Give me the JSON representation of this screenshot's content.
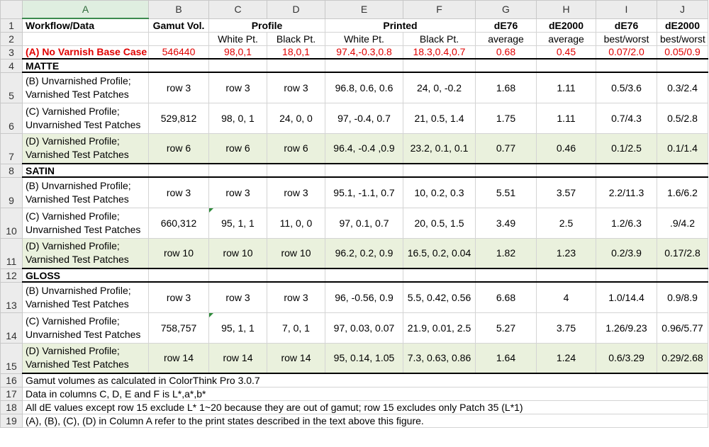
{
  "columns": [
    "A",
    "B",
    "C",
    "D",
    "E",
    "F",
    "G",
    "H",
    "I",
    "J"
  ],
  "row_numbers": [
    "1",
    "2",
    "3",
    "4",
    "5",
    "6",
    "7",
    "8",
    "9",
    "10",
    "11",
    "12",
    "13",
    "14",
    "15",
    "16",
    "17",
    "18",
    "19"
  ],
  "header1": {
    "a": "Workflow/Data",
    "b": "Gamut Vol.",
    "profile": "Profile",
    "printed": "Printed",
    "g": "dE76",
    "h": "dE2000",
    "i": "dE76",
    "j": "dE2000"
  },
  "header2": {
    "c": "White Pt.",
    "d": "Black Pt.",
    "e": "White Pt.",
    "f": "Black Pt.",
    "g": "average",
    "h": "average",
    "i": "best/worst",
    "j": "best/worst"
  },
  "base_case": [
    "(A) No Varnish Base Case",
    "546440",
    "98,0,1",
    "18,0,1",
    "97.4,-0.3,0.8",
    "18.3,0.4,0.7",
    "0.68",
    "0.45",
    "0.07/2.0",
    "0.05/0.9"
  ],
  "sections": {
    "matte": "MATTE",
    "satin": "SATIN",
    "gloss": "GLOSS"
  },
  "rows": {
    "r5": [
      "(B) Unvarnished Profile;\nVarnished Test Patches",
      "row 3",
      "row 3",
      "row 3",
      "96.8, 0.6, 0.6",
      "24, 0, -0.2",
      "1.68",
      "1.11",
      "0.5/3.6",
      "0.3/2.4"
    ],
    "r6": [
      "(C) Varnished Profile;\nUnvarnished Test Patches",
      "529,812",
      "98, 0, 1",
      "24, 0, 0",
      "97, -0.4, 0.7",
      "21, 0.5, 1.4",
      "1.75",
      "1.11",
      "0.7/4.3",
      "0.5/2.8"
    ],
    "r7": [
      "(D) Varnished Profile;\nVarnished Test Patches",
      "row 6",
      "row 6",
      "row 6",
      "96.4, -0.4 ,0.9",
      "23.2, 0.1, 0.1",
      "0.77",
      "0.46",
      "0.1/2.5",
      "0.1/1.4"
    ],
    "r9": [
      "(B) Unvarnished Profile;\nVarnished Test Patches",
      "row 3",
      "row 3",
      "row 3",
      "95.1, -1.1, 0.7",
      "10, 0.2, 0.3",
      "5.51",
      "3.57",
      "2.2/11.3",
      "1.6/6.2"
    ],
    "r10": [
      "(C) Varnished Profile;\nUnvarnished Test Patches",
      "660,312",
      "95, 1, 1",
      "11, 0, 0",
      "97, 0.1, 0.7",
      "20, 0.5, 1.5",
      "3.49",
      "2.5",
      "1.2/6.3",
      ".9/4.2"
    ],
    "r11": [
      "(D) Varnished Profile;\nVarnished Test Patches",
      "row 10",
      "row 10",
      "row 10",
      "96.2, 0.2, 0.9",
      "16.5, 0.2, 0.04",
      "1.82",
      "1.23",
      "0.2/3.9",
      "0.17/2.8"
    ],
    "r13": [
      "(B) Unvarnished Profile;\nVarnished Test Patches",
      "row 3",
      "row 3",
      "row 3",
      "96, -0.56, 0.9",
      "5.5, 0.42, 0.56",
      "6.68",
      "4",
      "1.0/14.4",
      "0.9/8.9"
    ],
    "r14": [
      "(C) Varnished Profile;\nUnvarnished Test Patches",
      "758,757",
      "95, 1, 1",
      "7, 0, 1",
      "97, 0.03, 0.07",
      "21.9, 0.01, 2.5",
      "5.27",
      "3.75",
      "1.26/9.23",
      "0.96/5.77"
    ],
    "r15": [
      "(D) Varnished Profile;\nVarnished Test Patches",
      "row 14",
      "row 14",
      "row 14",
      "95, 0.14, 1.05",
      "7.3, 0.63, 0.86",
      "1.64",
      "1.24",
      "0.6/3.29",
      "0.29/2.68"
    ]
  },
  "notes": [
    "Gamut volumes as calculated in ColorThink Pro 3.0.7",
    "Data in columns C, D, E and F is L*,a*,b*",
    "All dE values except row 15  exclude L* 1~20 because they are out of gamut; row 15 excludes only Patch 35 (L*1)",
    "(A), (B), (C), (D) in Column A refer to the print states described in the text above this figure."
  ],
  "colors": {
    "red_text": "#e00000",
    "green_fill": "#eaf1dd",
    "header_bg": "#ececec",
    "selected_col": "#dfeee0"
  }
}
